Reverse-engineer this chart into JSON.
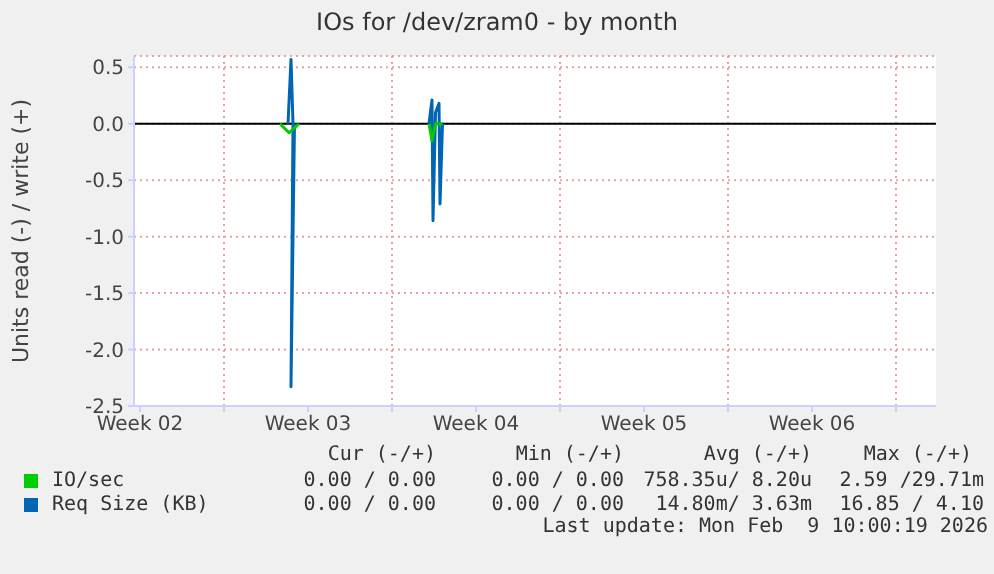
{
  "chart_data": {
    "type": "line",
    "title": "IOs for /dev/zram0 - by month",
    "ylabel": "Units read (-) / write (+)",
    "xlim": [
      "2026-01-08T06:00",
      "2026-02-10T16:00"
    ],
    "xticks": [
      {
        "value": "2026-01-08T12:00",
        "label": "Week 02"
      },
      {
        "value": "2026-01-12",
        "label": null
      },
      {
        "value": "2026-01-15T12:00",
        "label": "Week 03"
      },
      {
        "value": "2026-01-19",
        "label": null
      },
      {
        "value": "2026-01-22T12:00",
        "label": "Week 04"
      },
      {
        "value": "2026-01-26",
        "label": null
      },
      {
        "value": "2026-01-29T12:00",
        "label": "Week 05"
      },
      {
        "value": "2026-02-02",
        "label": null
      },
      {
        "value": "2026-02-05T12:00",
        "label": "Week 06"
      },
      {
        "value": "2026-02-09",
        "label": null
      }
    ],
    "ylim": [
      -2.5,
      0.6
    ],
    "yticks": [
      {
        "value": -2.5,
        "label": "-2.5"
      },
      {
        "value": -2,
        "label": "-2.0"
      },
      {
        "value": -1.5,
        "label": "-1.5"
      },
      {
        "value": -1,
        "label": "-1.0"
      },
      {
        "value": -0.5,
        "label": "-0.5"
      },
      {
        "value": 0,
        "label": "0.0"
      },
      {
        "value": 0.5,
        "label": "0.5"
      }
    ],
    "grid": true,
    "legend": "bottom",
    "ref_lines": [
      {
        "axis": "y",
        "value": 0,
        "color": "#000000"
      }
    ],
    "series": [
      {
        "name": "IO/sec",
        "color": "#00cc00",
        "x": [
          "2026-01-14T08:00",
          "2026-01-14T17:00",
          "2026-01-15T03:00",
          "2026-01-17T14:00",
          "2026-01-20T13:00",
          "2026-01-20T16:00",
          "2026-01-20T19:30",
          "2026-01-21T02:30"
        ],
        "values": [
          0,
          -0.08,
          0,
          null,
          0,
          -0.15,
          0,
          0
        ]
      },
      {
        "name": "Req Size (KB)",
        "color": "#0066b3",
        "x": [
          "2026-01-14T16:00",
          "2026-01-14T19:00",
          "2026-01-14T21:00",
          "2026-01-14T19:00",
          "2026-01-14T22:30",
          "2026-01-17T14:00",
          "2026-01-20T13:00",
          "2026-01-20T16:00",
          "2026-01-20T17:00",
          "2026-01-20T19:30",
          "2026-01-20T23:00",
          "2026-01-21T00:00",
          "2026-01-21T02:30"
        ],
        "values": [
          0,
          0.57,
          0,
          -2.33,
          0,
          null,
          0,
          0.21,
          -0.86,
          0.1,
          0.18,
          -0.71,
          0
        ]
      }
    ],
    "annotations": [
      "Cur (-/+)",
      "Min (-/+)",
      "Avg (-/+)",
      "Max (-/+)",
      "0.00 / 0.00",
      "0.00 / 0.00",
      "758.35u/ 8.20u",
      "2.59 /29.71m",
      "0.00 / 0.00",
      "0.00 / 0.00",
      "14.80m/ 3.63m",
      "16.85 / 4.10",
      "Last update: Mon Feb  9 10:00:19 2026"
    ]
  }
}
